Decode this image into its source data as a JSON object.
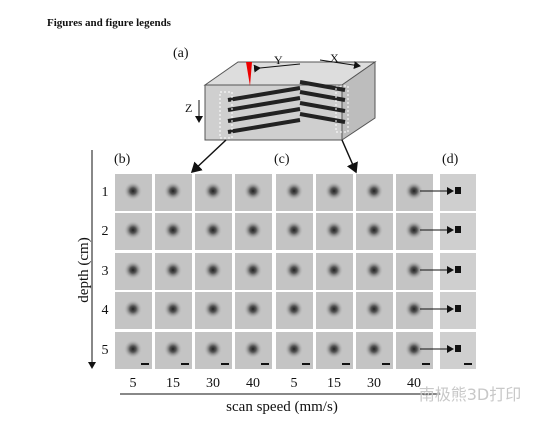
{
  "header": {
    "title": "Figures and figure legends"
  },
  "figure": {
    "panels": {
      "a": "(a)",
      "b": "(b)",
      "c": "(c)",
      "d": "(d)"
    },
    "axes_a": {
      "y": "Y",
      "x": "X",
      "z": "Z"
    },
    "depth_label": "depth (cm)",
    "depths": [
      "1",
      "2",
      "3",
      "4",
      "5"
    ],
    "speed_label": "scan speed (mm/s)",
    "speeds": [
      "5",
      "15",
      "30",
      "40"
    ]
  },
  "watermark": "南极熊3D打印"
}
